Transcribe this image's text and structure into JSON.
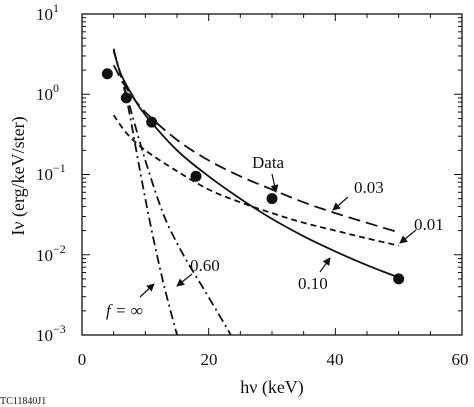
{
  "chart_data": {
    "type": "line",
    "xlabel": "hν (keV)",
    "ylabel": "Iν (erg/keV/ster)",
    "xlim": [
      0,
      60
    ],
    "ylim": [
      0.001,
      10
    ],
    "yscale": "log",
    "x_ticks": [
      "0",
      "20",
      "40",
      "60"
    ],
    "y_ticks": [
      {
        "base": "10",
        "exp": "1"
      },
      {
        "base": "10",
        "exp": "0"
      },
      {
        "base": "10",
        "exp": "−1"
      },
      {
        "base": "10",
        "exp": "−2"
      },
      {
        "base": "10",
        "exp": "−3"
      }
    ],
    "grid": false,
    "points": {
      "name": "Data",
      "x": [
        4,
        7,
        11,
        18,
        30,
        50
      ],
      "y": [
        1.8,
        0.9,
        0.45,
        0.095,
        0.05,
        0.005
      ]
    },
    "series": [
      {
        "name": "0.10",
        "style": "solid",
        "x": [
          5,
          6,
          8,
          10,
          15,
          20,
          25,
          30,
          35,
          40,
          45,
          50
        ],
        "y": [
          3.7,
          1.9,
          0.95,
          0.55,
          0.2,
          0.095,
          0.05,
          0.028,
          0.017,
          0.011,
          0.0074,
          0.0052
        ]
      },
      {
        "name": "0.03",
        "style": "dashed",
        "x": [
          5,
          7,
          10,
          15,
          20,
          25,
          30,
          35,
          40,
          45,
          50
        ],
        "y": [
          2.3,
          1.2,
          0.6,
          0.27,
          0.15,
          0.095,
          0.065,
          0.045,
          0.033,
          0.025,
          0.019
        ]
      },
      {
        "name": "0.01",
        "style": "short-dashed",
        "x": [
          5,
          7,
          10,
          15,
          20,
          25,
          30,
          35,
          40,
          45,
          50
        ],
        "y": [
          0.55,
          0.33,
          0.2,
          0.11,
          0.065,
          0.045,
          0.033,
          0.025,
          0.02,
          0.016,
          0.013
        ]
      },
      {
        "name": "0.60",
        "style": "dash-dot",
        "x": [
          5,
          7,
          10,
          13,
          16,
          19,
          22,
          23.5
        ],
        "y": [
          3.5,
          1.0,
          0.15,
          0.03,
          0.01,
          0.004,
          0.0016,
          0.001
        ]
      },
      {
        "name": "f = ∞",
        "style": "dash-dot",
        "x": [
          5,
          7,
          9,
          11,
          13,
          15
        ],
        "y": [
          3.5,
          0.9,
          0.13,
          0.02,
          0.004,
          0.001
        ]
      }
    ],
    "annotations": [
      "Data",
      "0.03",
      "0.01",
      "0.60",
      "0.10",
      "f = ∞"
    ]
  },
  "figure_id": "TC11840J1"
}
